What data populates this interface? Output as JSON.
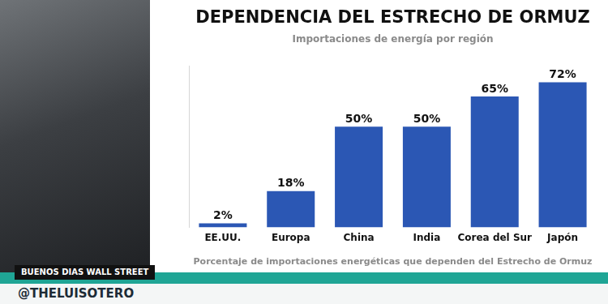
{
  "chart_data": {
    "type": "bar",
    "title": "DEPENDENCIA DEL ESTRECHO DE ORMUZ",
    "subtitle": "Importaciones de energía por región",
    "xlabel": "Porcentaje de importaciones energéticas que dependen del Estrecho de Ormuz",
    "categories": [
      "EE.UU.",
      "Europa",
      "China",
      "India",
      "Corea del Sur",
      "Japón"
    ],
    "values": [
      2,
      18,
      50,
      50,
      65,
      72
    ],
    "value_labels": [
      "2%",
      "18%",
      "50%",
      "50%",
      "65%",
      "72%"
    ],
    "color": "#2b57b4",
    "ylim": [
      0,
      80
    ],
    "grid": false,
    "data_labels": true,
    "tick_labels": "x"
  },
  "overlay": {
    "program": "BUENOS DIAS WALL STREET",
    "handle": "@THELUISOTERO"
  }
}
